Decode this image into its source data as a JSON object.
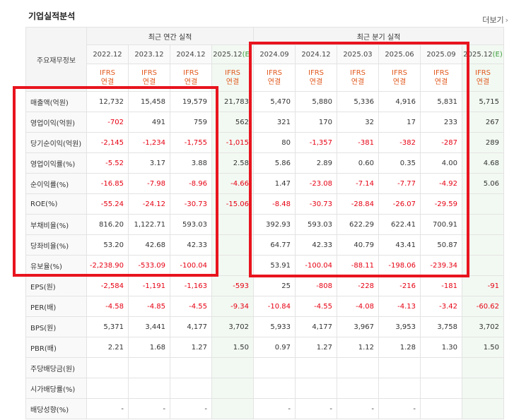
{
  "title": "기업실적분석",
  "more_label": "더보기",
  "row_header_label": "주요재무정보",
  "annual_group_label": "최근 연간 실적",
  "quarter_group_label": "최근 분기 실적",
  "periods": [
    {
      "label": "2022.12",
      "est": false
    },
    {
      "label": "2023.12",
      "est": false
    },
    {
      "label": "2024.12",
      "est": false
    },
    {
      "label": "2025.12(E)",
      "est": true
    },
    {
      "label": "2024.09",
      "est": false
    },
    {
      "label": "2024.12",
      "est": false
    },
    {
      "label": "2025.03",
      "est": false
    },
    {
      "label": "2025.06",
      "est": false
    },
    {
      "label": "2025.09",
      "est": false
    },
    {
      "label": "2025.12(E)",
      "est": true
    }
  ],
  "ifrs_label": "IFRS",
  "consolidated_label": "연결",
  "rows": [
    {
      "label": "매출액(억원)",
      "values": [
        "12,732",
        "15,458",
        "19,579",
        "21,783",
        "5,470",
        "5,880",
        "5,336",
        "4,916",
        "5,831",
        "5,715"
      ]
    },
    {
      "label": "영업이익(억원)",
      "values": [
        "-702",
        "491",
        "759",
        "562",
        "321",
        "170",
        "32",
        "17",
        "233",
        "267"
      ]
    },
    {
      "label": "당기순이익(억원)",
      "values": [
        "-2,145",
        "-1,234",
        "-1,755",
        "-1,015",
        "80",
        "-1,357",
        "-381",
        "-382",
        "-287",
        "289"
      ]
    },
    {
      "label": "영업이익률(%)",
      "values": [
        "-5.52",
        "3.17",
        "3.88",
        "2.58",
        "5.86",
        "2.89",
        "0.60",
        "0.35",
        "4.00",
        "4.68"
      ]
    },
    {
      "label": "순이익률(%)",
      "values": [
        "-16.85",
        "-7.98",
        "-8.96",
        "-4.66",
        "1.47",
        "-23.08",
        "-7.14",
        "-7.77",
        "-4.92",
        "5.06"
      ]
    },
    {
      "label": "ROE(%)",
      "values": [
        "-55.24",
        "-24.12",
        "-30.73",
        "-15.06",
        "-8.48",
        "-30.73",
        "-28.84",
        "-26.07",
        "-29.59",
        ""
      ]
    },
    {
      "label": "부채비율(%)",
      "values": [
        "816.20",
        "1,122.71",
        "593.03",
        "",
        "392.93",
        "593.03",
        "622.29",
        "622.41",
        "700.91",
        ""
      ]
    },
    {
      "label": "당좌비율(%)",
      "values": [
        "53.20",
        "42.68",
        "42.33",
        "",
        "64.77",
        "42.33",
        "40.79",
        "43.41",
        "50.87",
        ""
      ]
    },
    {
      "label": "유보율(%)",
      "values": [
        "-2,238.90",
        "-533.09",
        "-100.04",
        "",
        "53.91",
        "-100.04",
        "-88.11",
        "-198.06",
        "-239.34",
        ""
      ]
    },
    {
      "label": "EPS(원)",
      "values": [
        "-2,584",
        "-1,191",
        "-1,163",
        "-593",
        "25",
        "-808",
        "-228",
        "-216",
        "-181",
        "-91"
      ]
    },
    {
      "label": "PER(배)",
      "values": [
        "-4.58",
        "-4.85",
        "-4.55",
        "-9.34",
        "-10.84",
        "-4.55",
        "-4.08",
        "-4.13",
        "-3.42",
        "-60.62"
      ]
    },
    {
      "label": "BPS(원)",
      "values": [
        "5,371",
        "3,441",
        "4,177",
        "3,702",
        "5,933",
        "4,177",
        "3,967",
        "3,953",
        "3,758",
        "3,702"
      ]
    },
    {
      "label": "PBR(배)",
      "values": [
        "2.21",
        "1.68",
        "1.27",
        "1.50",
        "0.97",
        "1.27",
        "1.12",
        "1.28",
        "1.30",
        "1.50"
      ]
    },
    {
      "label": "주당배당금(원)",
      "values": [
        "",
        "",
        "",
        "",
        "",
        "",
        "",
        "",
        "",
        ""
      ]
    },
    {
      "label": "시가배당률(%)",
      "values": [
        "",
        "",
        "",
        "",
        "",
        "",
        "",
        "",
        "",
        ""
      ]
    },
    {
      "label": "배당성향(%)",
      "values": [
        "-",
        "-",
        "-",
        "",
        "-",
        "-",
        "-",
        "-",
        "",
        ""
      ]
    }
  ],
  "colors": {
    "negative": "#e60012",
    "ifrs": "#e15a1f",
    "highlight_box": "#e8141e",
    "estimate_bg": "#f2f9f2"
  }
}
